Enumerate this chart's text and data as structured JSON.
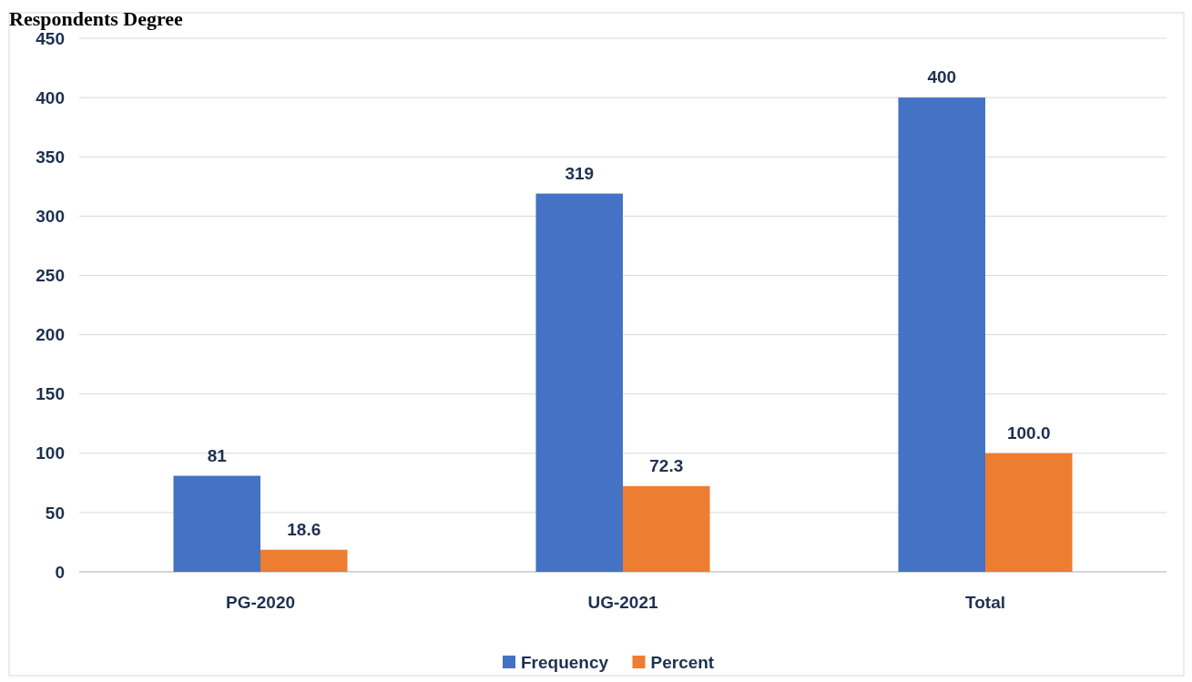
{
  "chart_data": {
    "type": "bar",
    "title": "Respondents Degree",
    "categories": [
      "PG-2020",
      "UG-2021",
      "Total"
    ],
    "series": [
      {
        "name": "Frequency",
        "color": "#4472c4",
        "values": [
          81,
          319,
          400
        ],
        "value_labels": [
          "81",
          "319",
          "400"
        ]
      },
      {
        "name": "Percent",
        "color": "#ed7d31",
        "values": [
          18.6,
          72.3,
          100.0
        ],
        "value_labels": [
          "18.6",
          "72.3",
          "100.0"
        ]
      }
    ],
    "ylim": [
      0,
      450
    ],
    "yticks": [
      0,
      50,
      100,
      150,
      200,
      250,
      300,
      350,
      400,
      450
    ],
    "grid": "y",
    "legend": "bottom"
  }
}
